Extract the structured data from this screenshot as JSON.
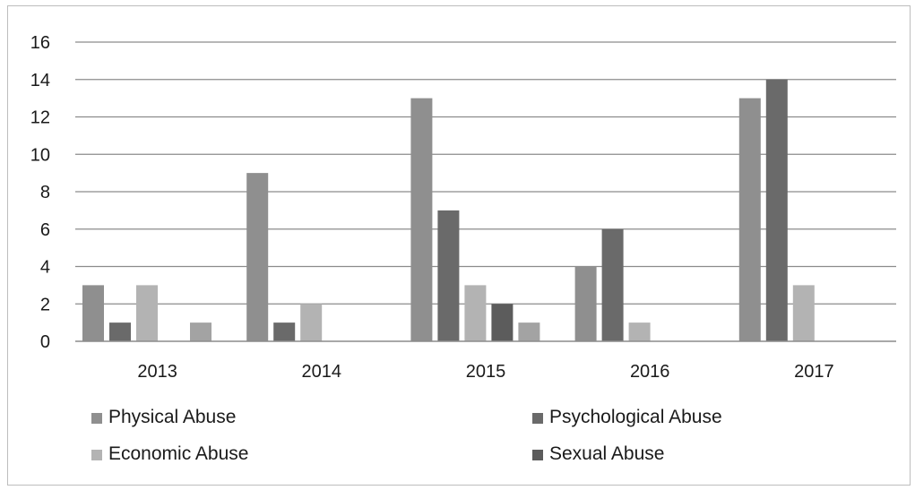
{
  "chart_data": {
    "type": "bar",
    "title": "",
    "xlabel": "",
    "ylabel": "",
    "categories": [
      "2013",
      "2014",
      "2015",
      "2016",
      "2017"
    ],
    "ylim": [
      0,
      16
    ],
    "yticks": [
      "0",
      "2",
      "4",
      "6",
      "8",
      "10",
      "12",
      "14",
      "16"
    ],
    "grid": true,
    "legend_position": "bottom",
    "series": [
      {
        "name": "Physical Abuse",
        "color": "#8f8f8f",
        "values": [
          3,
          9,
          13,
          4,
          13
        ]
      },
      {
        "name": "Psychological Abuse",
        "color": "#6a6a6a",
        "values": [
          1,
          1,
          7,
          6,
          14
        ]
      },
      {
        "name": "Economic Abuse",
        "color": "#b3b3b3",
        "values": [
          3,
          2,
          3,
          1,
          3
        ]
      },
      {
        "name": "Sexual Abuse",
        "color": "#5c5c5c",
        "values": [
          0,
          0,
          2,
          0,
          0
        ]
      },
      {
        "name": "",
        "color": "#a3a3a3",
        "values": [
          1,
          0,
          1,
          0,
          0
        ]
      }
    ]
  }
}
